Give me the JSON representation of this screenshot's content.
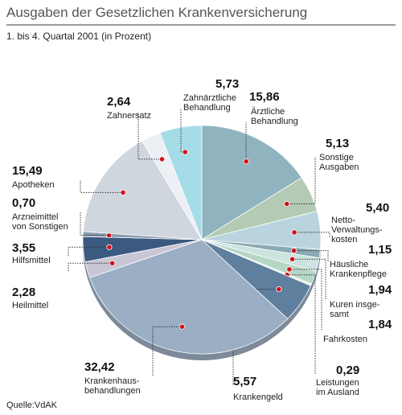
{
  "chart_data": {
    "type": "pie",
    "title": "Ausgaben der Gesetzlichen Krankenversicherung",
    "subtitle": "1. bis 4. Quartal 2001 (in Prozent)",
    "source": "Quelle:VdAK",
    "categories": [
      "Ärztliche\nBehandlung",
      "Sonstige\nAusgaben",
      "Netto-\nVerwaltungs-\nkosten",
      "Häusliche\nKrankenpflege",
      "Kuren insge-\nsamt",
      "Fahrkosten",
      "Leistungen\nim Ausland",
      "Krankengeld",
      "Krankenhaus-\nbehandlungen",
      "Heilmittel",
      "Hilfsmittel",
      "Arzneimittel\nvon Sonstigen",
      "Apotheken",
      "Zahnersatz",
      "Zahnärztliche\nBehandlung"
    ],
    "values": [
      15.86,
      5.13,
      5.4,
      1.15,
      1.94,
      1.84,
      0.29,
      5.57,
      32.42,
      2.28,
      3.55,
      0.7,
      15.49,
      2.64,
      5.73
    ],
    "value_labels": [
      "15,86",
      "5,13",
      "5,40",
      "1,15",
      "1,94",
      "1,84",
      "0,29",
      "5,57",
      "32,42",
      "2,28",
      "3,55",
      "0,70",
      "15,49",
      "2,64",
      "5,73"
    ],
    "colors": [
      "#8fb4c0",
      "#b3cab4",
      "#b9d4de",
      "#89a9b4",
      "#cce3e0",
      "#b6d6c6",
      "#e4ede6",
      "#5f7f9e",
      "#9aaec4",
      "#c9c6d6",
      "#3b5a80",
      "#8c9db0",
      "#cfd6de",
      "#eceff3",
      "#a6dce8"
    ]
  }
}
